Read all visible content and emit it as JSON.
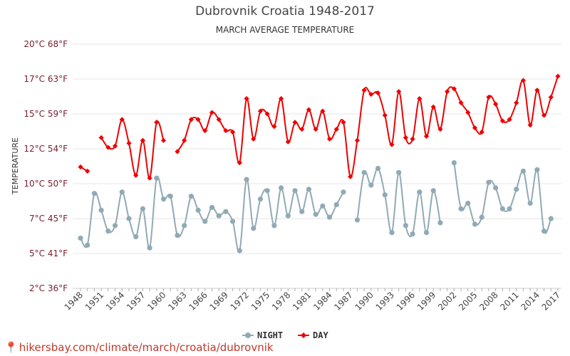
{
  "chart_data": {
    "type": "line",
    "title": "Dubrovnik Croatia 1948-2017",
    "subtitle": "MARCH AVERAGE TEMPERATURE",
    "ylabel": "TEMPERATURE",
    "xlabel": "",
    "ylim": [
      2.5,
      17.5
    ],
    "y_ticks": [
      {
        "value": 2.5,
        "label": "2°C 36°F"
      },
      {
        "value": 5,
        "label": "5°C 41°F"
      },
      {
        "value": 7.5,
        "label": "7°C 45°F"
      },
      {
        "value": 10,
        "label": "10°C 50°F"
      },
      {
        "value": 12.5,
        "label": "12°C 54°F"
      },
      {
        "value": 15,
        "label": "15°C 59°F"
      },
      {
        "value": 17.5,
        "label": "17°C 63°F"
      },
      {
        "value": 20,
        "label": "20°C 68°F"
      }
    ],
    "x_tick_labels": [
      "1948",
      "1951",
      "1954",
      "1957",
      "1960",
      "1963",
      "1966",
      "1969",
      "1972",
      "1975",
      "1978",
      "1981",
      "1984",
      "1987",
      "1990",
      "1993",
      "1996",
      "1999",
      "2002",
      "2005",
      "2008",
      "2011",
      "2014",
      "2017"
    ],
    "x": [
      1948,
      1949,
      1950,
      1951,
      1952,
      1953,
      1954,
      1955,
      1956,
      1957,
      1958,
      1959,
      1960,
      1961,
      1962,
      1963,
      1964,
      1965,
      1966,
      1967,
      1968,
      1969,
      1970,
      1971,
      1972,
      1973,
      1974,
      1975,
      1976,
      1977,
      1978,
      1979,
      1980,
      1981,
      1982,
      1983,
      1984,
      1985,
      1986,
      1987,
      1988,
      1989,
      1990,
      1991,
      1992,
      1993,
      1994,
      1995,
      1996,
      1997,
      1998,
      1999,
      2000,
      2001,
      2002,
      2003,
      2004,
      2005,
      2006,
      2007,
      2008,
      2009,
      2010,
      2011,
      2012,
      2013,
      2014,
      2015,
      2016,
      2017
    ],
    "series": [
      {
        "name": "NIGHT",
        "color": "#90aab5",
        "values": [
          6.1,
          5.6,
          9.3,
          8.1,
          6.6,
          7.0,
          9.4,
          7.5,
          6.2,
          8.2,
          5.4,
          10.4,
          8.9,
          9.1,
          6.3,
          7.0,
          9.1,
          8.1,
          7.3,
          8.3,
          7.7,
          8.0,
          7.3,
          5.2,
          10.3,
          6.8,
          8.9,
          9.5,
          7.0,
          9.7,
          7.7,
          9.5,
          8.0,
          9.6,
          7.8,
          8.4,
          7.6,
          8.5,
          9.4,
          null,
          7.4,
          10.8,
          9.9,
          11.1,
          9.2,
          6.5,
          10.8,
          7.0,
          6.4,
          9.4,
          6.5,
          9.5,
          7.2,
          null,
          11.5,
          8.2,
          8.6,
          7.1,
          7.6,
          10.1,
          9.7,
          8.2,
          8.2,
          9.6,
          10.9,
          8.6,
          11.0,
          6.6,
          7.5,
          null
        ]
      },
      {
        "name": "DAY",
        "color": "#ee0000",
        "values": [
          11.2,
          10.9,
          null,
          13.3,
          12.6,
          12.7,
          14.6,
          12.9,
          10.6,
          13.1,
          10.4,
          14.4,
          13.1,
          null,
          12.3,
          13.1,
          14.6,
          14.6,
          13.8,
          15.1,
          14.6,
          13.8,
          13.7,
          11.5,
          16.1,
          13.2,
          15.2,
          15.0,
          14.1,
          16.1,
          13.0,
          14.4,
          13.9,
          15.3,
          13.9,
          15.2,
          13.2,
          13.9,
          14.4,
          10.5,
          13.1,
          16.7,
          16.4,
          16.5,
          14.9,
          12.8,
          16.6,
          13.3,
          13.2,
          16.1,
          13.4,
          15.5,
          13.9,
          16.6,
          16.8,
          15.8,
          15.1,
          14.0,
          13.7,
          16.2,
          15.7,
          14.5,
          14.6,
          15.8,
          17.4,
          14.2,
          16.7,
          14.9,
          16.2,
          17.7
        ]
      }
    ],
    "grid": true,
    "legend_position": "bottom"
  },
  "source": {
    "text": "hikersbay.com/climate/march/croatia/dubrovnik"
  }
}
